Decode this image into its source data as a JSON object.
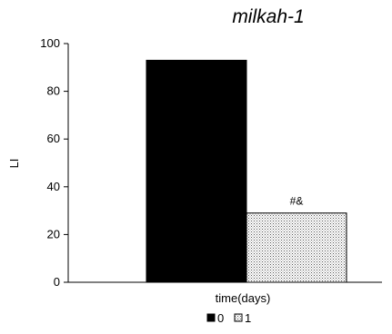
{
  "chart_data": {
    "type": "bar",
    "title": "milkah-1",
    "xlabel": "time(days)",
    "ylabel": "LI",
    "ylim": [
      0,
      100
    ],
    "yticks": [
      0,
      20,
      40,
      60,
      80,
      100
    ],
    "categories": [
      ""
    ],
    "series": [
      {
        "name": "0",
        "values": [
          93
        ],
        "color": "#000000",
        "pattern": "solid"
      },
      {
        "name": "1",
        "values": [
          29
        ],
        "color": "#ffffff",
        "pattern": "dots",
        "annotation": "#&"
      }
    ],
    "legend_position": "bottom",
    "grid": false
  }
}
